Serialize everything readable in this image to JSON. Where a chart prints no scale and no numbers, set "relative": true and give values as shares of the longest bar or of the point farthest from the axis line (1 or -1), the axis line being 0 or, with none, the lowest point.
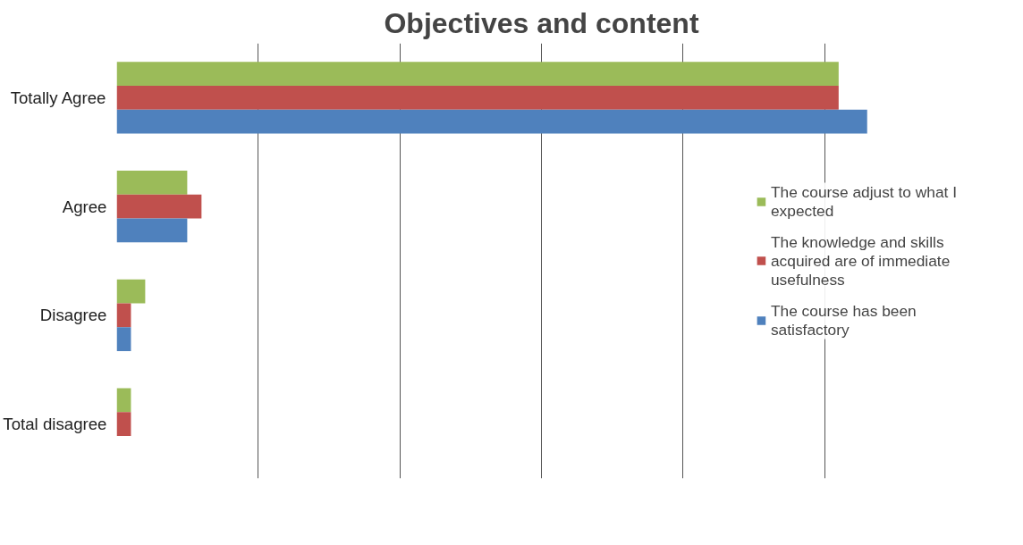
{
  "chart_data": {
    "type": "bar",
    "orientation": "horizontal",
    "relative": true,
    "title": "Objectives and content",
    "categories": [
      "Totally Agree",
      "Agree",
      "Disagree",
      "Total disagree"
    ],
    "series": [
      {
        "name": "The course adjust to what I expected",
        "color": "#9bbb59",
        "values": [
          0.962,
          0.094,
          0.038,
          0.019
        ]
      },
      {
        "name": "The knowledge and skills acquired are of immediate usefulness",
        "color": "#c0504d",
        "values": [
          0.962,
          0.113,
          0.019,
          0.019
        ]
      },
      {
        "name": "The course has been satisfactory",
        "color": "#4f81bd",
        "values": [
          1,
          0.094,
          0.019,
          0
        ]
      }
    ],
    "grid": "x",
    "legend": "right"
  }
}
